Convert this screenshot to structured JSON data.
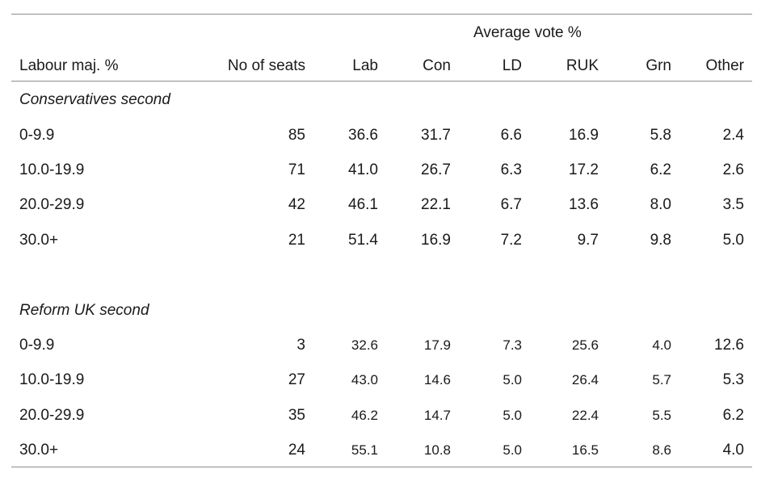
{
  "table": {
    "group_header": "Average vote %",
    "columns": [
      "Labour maj. %",
      "No of seats",
      "Lab",
      "Con",
      "LD",
      "RUK",
      "Grn",
      "Other"
    ],
    "sections": [
      {
        "label": "Conservatives second",
        "rows": [
          [
            "0-9.9",
            "85",
            "36.6",
            "31.7",
            "6.6",
            "16.9",
            "5.8",
            "2.4"
          ],
          [
            "10.0-19.9",
            "71",
            "41.0",
            "26.7",
            "6.3",
            "17.2",
            "6.2",
            "2.6"
          ],
          [
            "20.0-29.9",
            "42",
            "46.1",
            "22.1",
            "6.7",
            "13.6",
            "8.0",
            "3.5"
          ],
          [
            "30.0+",
            "21",
            "51.4",
            "16.9",
            "7.2",
            "9.7",
            "9.8",
            "5.0"
          ]
        ]
      },
      {
        "label": "Reform UK second",
        "rows": [
          [
            "0-9.9",
            "3",
            "32.6",
            "17.9",
            "7.3",
            "25.6",
            "4.0",
            "12.6"
          ],
          [
            "10.0-19.9",
            "27",
            "43.0",
            "14.6",
            "5.0",
            "26.4",
            "5.7",
            "5.3"
          ],
          [
            "20.0-29.9",
            "35",
            "46.2",
            "14.7",
            "5.0",
            "22.4",
            "5.5",
            "6.2"
          ],
          [
            "30.0+",
            "24",
            "55.1",
            "10.8",
            "5.0",
            "16.5",
            "8.6",
            "4.0"
          ]
        ]
      }
    ]
  }
}
